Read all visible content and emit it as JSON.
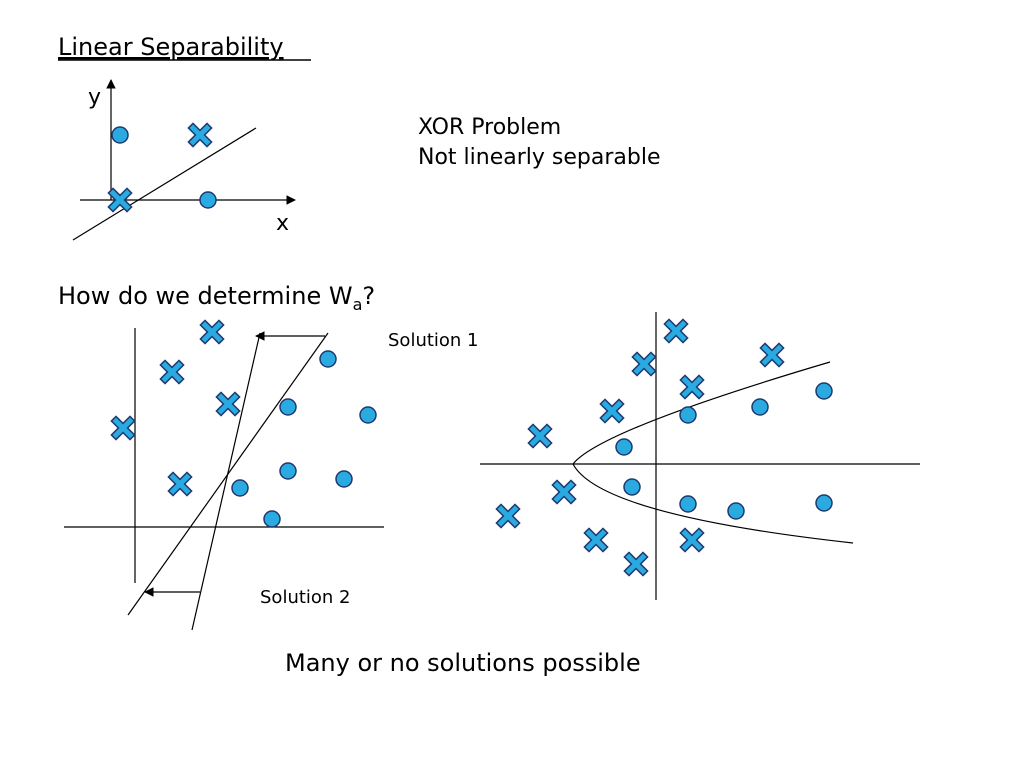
{
  "title": "Linear Separability",
  "xor_plot": {
    "y_label": "y",
    "x_label": "x"
  },
  "xor_note": {
    "line1": "XOR Problem",
    "line2": "Not linearly separable"
  },
  "question": {
    "text": "How do we determine W",
    "subscript": "a",
    "suffix": "?"
  },
  "solutions_plot": {
    "solution1": "Solution 1",
    "solution2": "Solution 2"
  },
  "conclusion": "Many or no solutions possible"
}
